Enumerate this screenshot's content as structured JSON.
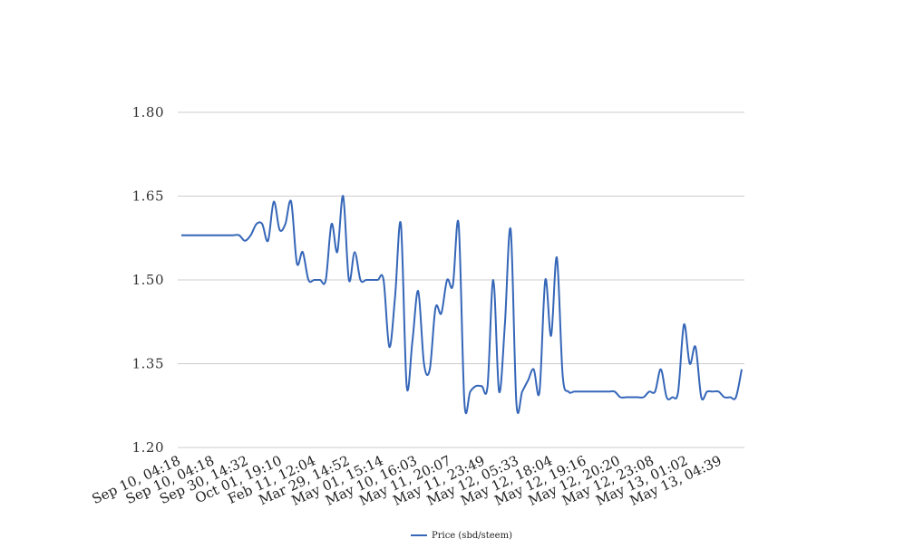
{
  "chart_data": {
    "type": "line",
    "title": "",
    "xlabel": "",
    "ylabel": "",
    "ylim": [
      1.2,
      1.8
    ],
    "yticks": [
      "1.80",
      "1.65",
      "1.50",
      "1.35",
      "1.20"
    ],
    "xticks": [
      "Sep 10, 04:18",
      "Sep 10, 04:18",
      "Sep 30, 14:32",
      "Oct 01, 19:10",
      "Feb 11, 12:04",
      "Mar 29, 14:52",
      "May 01, 15:14",
      "May 10, 16:03",
      "May 11, 20:07",
      "May 11, 23:49",
      "May 12, 05:33",
      "May 12, 18:04",
      "May 12, 19:16",
      "May 12, 20:20",
      "May 12, 23:08",
      "May 13, 01:02",
      "May 13, 04:39"
    ],
    "grid": true,
    "legend_position": "bottom",
    "colors": {
      "series": "#3566b8",
      "grid": "#cccccc"
    },
    "series": [
      {
        "name": "Price (sbd/steem)",
        "values": [
          1.58,
          1.58,
          1.58,
          1.58,
          1.58,
          1.58,
          1.58,
          1.58,
          1.58,
          1.58,
          1.58,
          1.57,
          1.58,
          1.6,
          1.6,
          1.57,
          1.64,
          1.59,
          1.6,
          1.64,
          1.53,
          1.55,
          1.5,
          1.5,
          1.5,
          1.5,
          1.6,
          1.55,
          1.65,
          1.5,
          1.55,
          1.5,
          1.5,
          1.5,
          1.5,
          1.5,
          1.38,
          1.47,
          1.6,
          1.31,
          1.39,
          1.48,
          1.35,
          1.34,
          1.45,
          1.44,
          1.5,
          1.49,
          1.6,
          1.28,
          1.3,
          1.31,
          1.31,
          1.31,
          1.5,
          1.3,
          1.42,
          1.59,
          1.28,
          1.3,
          1.32,
          1.34,
          1.3,
          1.5,
          1.4,
          1.54,
          1.33,
          1.3,
          1.3,
          1.3,
          1.3,
          1.3,
          1.3,
          1.3,
          1.3,
          1.3,
          1.29,
          1.29,
          1.29,
          1.29,
          1.29,
          1.3,
          1.3,
          1.34,
          1.29,
          1.29,
          1.3,
          1.42,
          1.35,
          1.38,
          1.29,
          1.3,
          1.3,
          1.3,
          1.29,
          1.29,
          1.29,
          1.34
        ]
      }
    ]
  }
}
